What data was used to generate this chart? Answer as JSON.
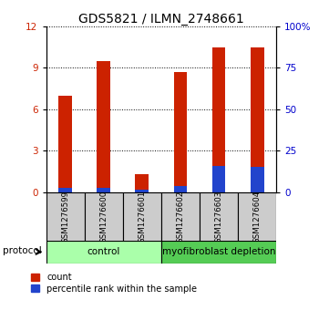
{
  "title": "GDS5821 / ILMN_2748661",
  "samples": [
    "GSM1276599",
    "GSM1276600",
    "GSM1276601",
    "GSM1276602",
    "GSM1276603",
    "GSM1276604"
  ],
  "count_values": [
    7.0,
    9.5,
    1.3,
    8.7,
    10.5,
    10.5
  ],
  "percentile_values": [
    0.28,
    0.32,
    0.2,
    0.4,
    1.9,
    1.85
  ],
  "groups": [
    {
      "label": "control",
      "start": 0,
      "end": 3,
      "color": "#aaffaa"
    },
    {
      "label": "myofibroblast depletion",
      "start": 3,
      "end": 6,
      "color": "#55cc55"
    }
  ],
  "ylim_left": [
    0,
    12
  ],
  "ylim_right": [
    0,
    100
  ],
  "yticks_left": [
    0,
    3,
    6,
    9,
    12
  ],
  "yticks_right": [
    0,
    25,
    50,
    75,
    100
  ],
  "ytick_labels_right": [
    "0",
    "25",
    "50",
    "75",
    "100%"
  ],
  "bar_color_red": "#cc2200",
  "bar_color_blue": "#2244cc",
  "bar_width": 0.35,
  "bg_color": "#ffffff",
  "label_bg_color": "#cccccc",
  "legend_count_label": "count",
  "legend_pct_label": "percentile rank within the sample",
  "protocol_label": "protocol",
  "title_fontsize": 10,
  "tick_fontsize": 7.5,
  "label_fontsize": 8
}
